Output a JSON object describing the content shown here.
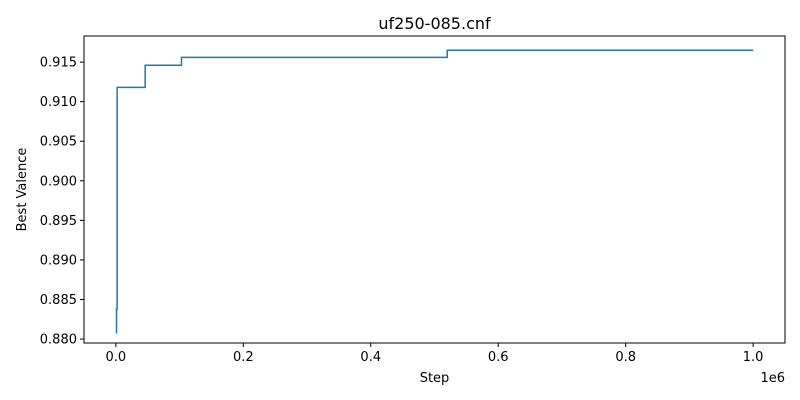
{
  "chart_data": {
    "type": "line",
    "title": "uf250-085.cnf",
    "xlabel": "Step",
    "ylabel": "Best Valence",
    "x_offset_label": "1e6",
    "xlim": [
      -50000,
      1050000
    ],
    "ylim": [
      0.8795,
      0.9183
    ],
    "x_ticks": [
      0,
      200000,
      400000,
      600000,
      800000,
      1000000
    ],
    "x_tick_labels": [
      "0.0",
      "0.2",
      "0.4",
      "0.6",
      "0.8",
      "1.0"
    ],
    "y_ticks": [
      0.88,
      0.885,
      0.89,
      0.895,
      0.9,
      0.905,
      0.91,
      0.915
    ],
    "y_tick_labels": [
      "0.880",
      "0.885",
      "0.890",
      "0.895",
      "0.900",
      "0.905",
      "0.910",
      "0.915"
    ],
    "grid": false,
    "legend": "none",
    "series": [
      {
        "color": "#1f77b4",
        "step": true,
        "x": [
          0,
          1000,
          2000,
          46000,
          103000,
          520000,
          1000000
        ],
        "y": [
          0.8808,
          0.8838,
          0.9118,
          0.9146,
          0.9156,
          0.9165,
          0.9165
        ]
      }
    ]
  }
}
